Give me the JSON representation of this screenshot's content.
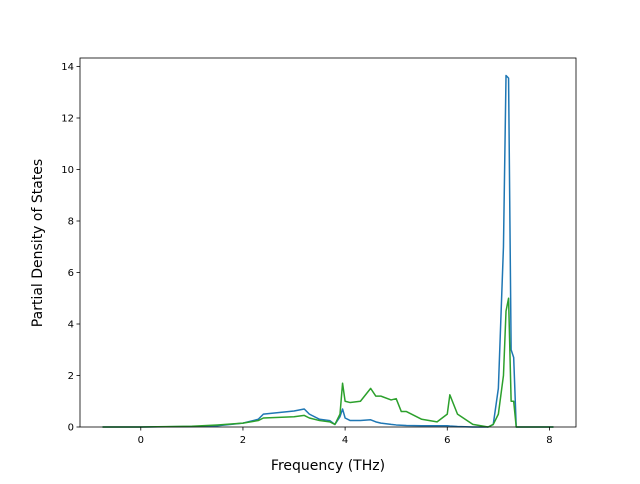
{
  "chart_data": {
    "type": "line",
    "xlabel": "Frequency (THz)",
    "ylabel": "Partial Density of States",
    "x": [
      -0.75,
      0,
      1,
      1.5,
      2,
      2.3,
      2.4,
      3.0,
      3.2,
      3.3,
      3.5,
      3.7,
      3.8,
      3.9,
      3.95,
      4.0,
      4.1,
      4.3,
      4.5,
      4.6,
      4.7,
      4.9,
      5.0,
      5.1,
      5.2,
      5.5,
      5.8,
      6.0,
      6.05,
      6.2,
      6.5,
      6.8,
      6.9,
      7.0,
      7.1,
      7.15,
      7.2,
      7.25,
      7.3,
      7.35,
      7.4,
      7.5,
      8.08
    ],
    "series": [
      {
        "color": "#1f77b4",
        "values": [
          0,
          0,
          0.02,
          0.05,
          0.15,
          0.3,
          0.5,
          0.62,
          0.7,
          0.5,
          0.3,
          0.25,
          0.1,
          0.4,
          0.7,
          0.35,
          0.25,
          0.25,
          0.28,
          0.2,
          0.15,
          0.1,
          0.08,
          0.07,
          0.06,
          0.05,
          0.05,
          0.05,
          0.04,
          0.02,
          0,
          0,
          0.1,
          1.5,
          7,
          13.65,
          13.55,
          3,
          2.7,
          0,
          0,
          0,
          0
        ]
      },
      {
        "color": "#2ca02c",
        "values": [
          0,
          0,
          0.03,
          0.08,
          0.15,
          0.25,
          0.35,
          0.4,
          0.45,
          0.35,
          0.25,
          0.2,
          0.1,
          0.5,
          1.7,
          1.0,
          0.95,
          1.0,
          1.5,
          1.2,
          1.2,
          1.05,
          1.1,
          0.6,
          0.6,
          0.3,
          0.2,
          0.5,
          1.25,
          0.5,
          0.1,
          0,
          0.1,
          0.5,
          2,
          4.5,
          5.0,
          1.0,
          1.0,
          0,
          0,
          0,
          0
        ]
      }
    ],
    "xlim": [
      -1.19,
      8.52
    ],
    "ylim": [
      0,
      14.33
    ],
    "xticks": [
      0,
      2,
      4,
      6,
      8
    ],
    "yticks": [
      0,
      2,
      4,
      6,
      8,
      10,
      12,
      14
    ]
  }
}
